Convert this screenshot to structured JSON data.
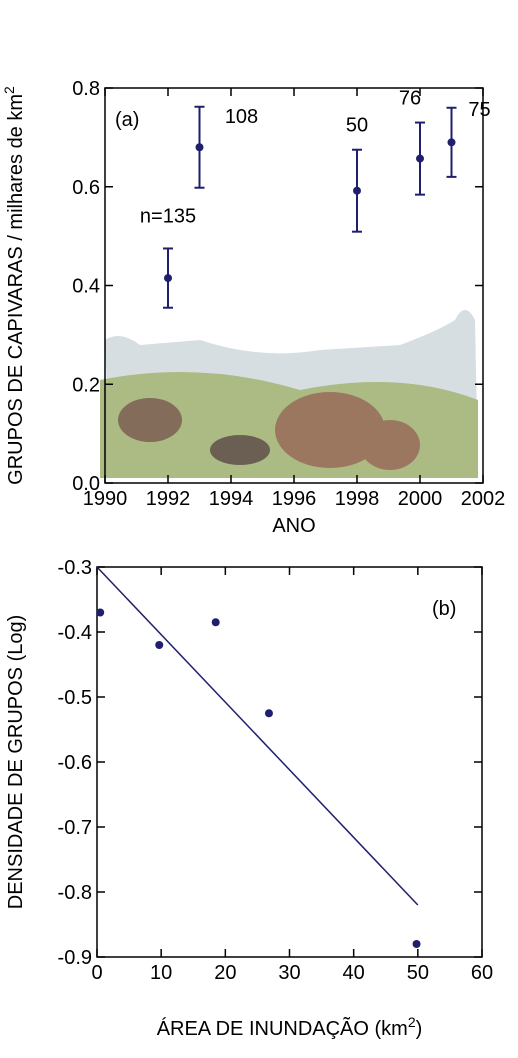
{
  "chart_data": [
    {
      "type": "scatter",
      "panel_label": "(a)",
      "x_label": [
        "ANO"
      ],
      "y_label": [
        "GRUPOS DE CAPIVARAS / milhares de km",
        "2"
      ],
      "xlim": [
        1990,
        2002
      ],
      "xticks": [
        1990,
        1992,
        1994,
        1996,
        1998,
        2000,
        2002
      ],
      "ylim": [
        0,
        0.8
      ],
      "yticks": [
        {
          "value": 0,
          "label": "0.0"
        },
        0.2,
        0.4,
        0.6,
        0.8
      ],
      "series": [
        {
          "type": "scatter",
          "color": "#1f1f6e",
          "x": [
            1992,
            1993,
            1998,
            2000,
            2001
          ],
          "values": [
            0.415,
            0.68,
            0.592,
            0.657,
            0.69
          ],
          "errors": [
            0.06,
            0.082,
            0.083,
            0.073,
            0.07
          ],
          "point_labels": [
            "n=135",
            "108",
            "50",
            "76",
            "75"
          ]
        }
      ]
    },
    {
      "type": "scatter",
      "panel_label": "(b)",
      "x_label": [
        "ÁREA DE INUNDAÇÃO (km",
        "2",
        ")"
      ],
      "y_label": [
        "DENSIDADE DE GRUPOS (Log)"
      ],
      "xlim": [
        0,
        60
      ],
      "xticks": [
        0,
        10,
        20,
        30,
        40,
        50,
        60
      ],
      "ylim": [
        -0.9,
        -0.3
      ],
      "yticks": [
        -0.9,
        -0.8,
        -0.7,
        -0.6,
        -0.5,
        -0.4,
        -0.3
      ],
      "series": [
        {
          "type": "scatter",
          "color": "#1f1f6e",
          "x": [
            0.5,
            9.7,
            18.5,
            26.8,
            49.8
          ],
          "values": [
            -0.37,
            -0.42,
            -0.385,
            -0.525,
            -0.88
          ]
        },
        {
          "type": "line",
          "color": "#1f1f6e",
          "x": [
            0,
            50
          ],
          "values": [
            -0.3,
            -0.82
          ]
        }
      ]
    }
  ]
}
